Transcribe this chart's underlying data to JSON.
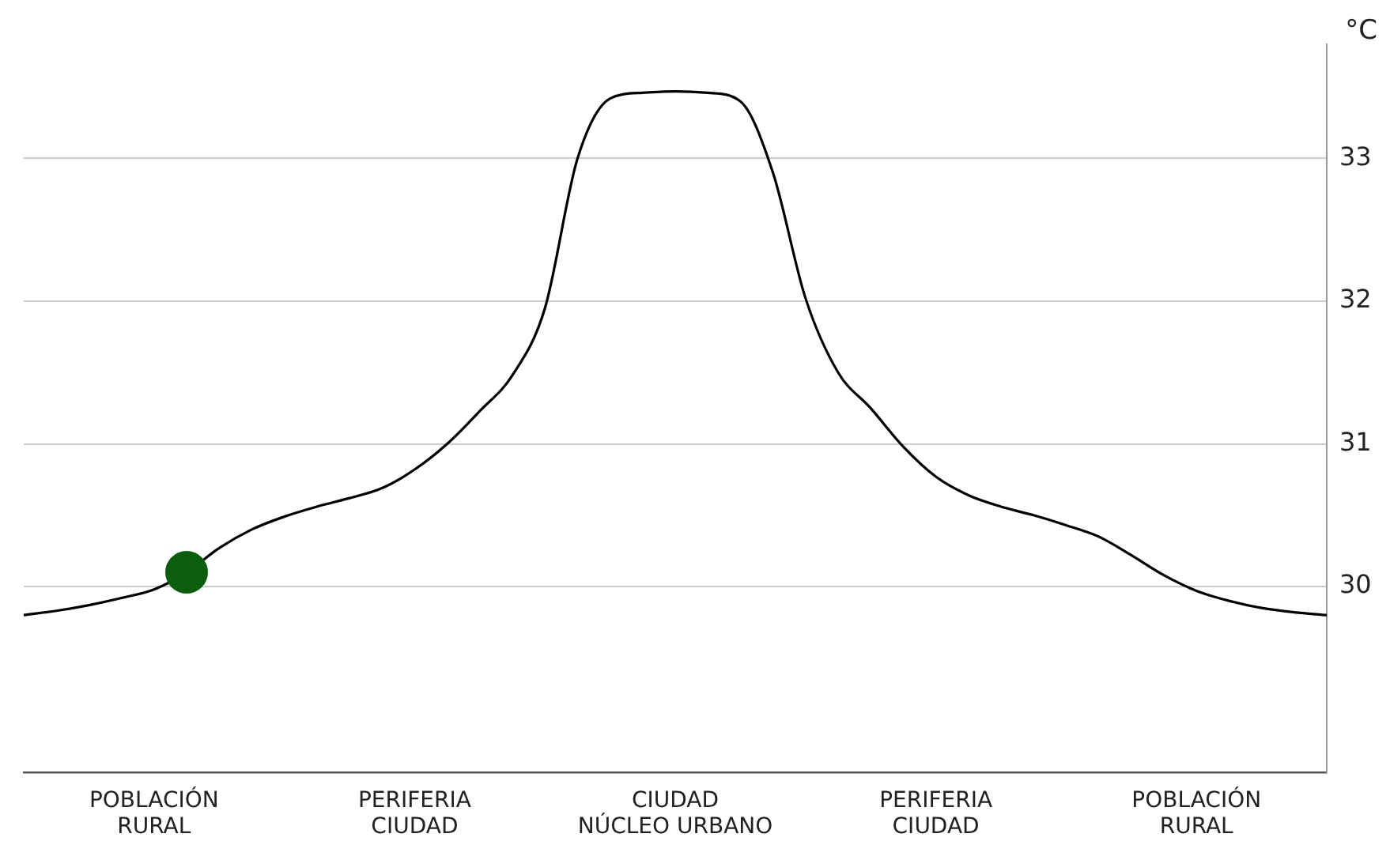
{
  "chart_data": {
    "type": "line",
    "ylabel": "°C",
    "categories": [
      null,
      null,
      null,
      null,
      "POBLACIÓN\nRURAL",
      null,
      null,
      null,
      null,
      null,
      null,
      null,
      "PERIFERIA\nCIUDAD",
      null,
      null,
      null,
      null,
      null,
      null,
      null,
      "CIUDAD\nNÚCLEO URBANO",
      null,
      null,
      null,
      null,
      null,
      null,
      null,
      "PERIFERIA\nCIUDAD",
      null,
      null,
      null,
      null,
      null,
      null,
      null,
      "POBLACIÓN\nRURAL",
      null,
      null,
      null,
      null
    ],
    "ylim": [
      28.7,
      33.8
    ],
    "yticks": [
      30,
      31,
      32,
      33
    ],
    "grid": "y",
    "legend": false,
    "series": [
      {
        "color": "#000000",
        "marker": "none",
        "line_style": "solid",
        "values": [
          29.8,
          29.83,
          29.87,
          29.92,
          29.98,
          30.1,
          30.27,
          30.4,
          30.49,
          30.56,
          30.62,
          30.69,
          30.82,
          31.0,
          31.23,
          31.48,
          31.95,
          33.0,
          33.42,
          33.46,
          33.47,
          33.46,
          33.4,
          32.9,
          32.02,
          31.5,
          31.25,
          30.98,
          30.77,
          30.64,
          30.56,
          30.5,
          30.43,
          30.35,
          30.22,
          30.08,
          29.97,
          29.9,
          29.85,
          29.82,
          29.8
        ]
      },
      {
        "type": "scatter",
        "color": "#0b5e0b",
        "marker": "circle",
        "values": [
          null,
          null,
          null,
          null,
          null,
          30.1,
          null,
          null,
          null,
          null,
          null,
          null,
          null,
          null,
          null,
          null,
          null,
          null,
          null,
          null,
          null,
          null,
          null,
          null,
          null,
          null,
          null,
          null,
          null,
          null,
          null,
          null,
          null,
          null,
          null,
          null,
          null,
          null,
          null,
          null,
          null
        ]
      }
    ]
  }
}
